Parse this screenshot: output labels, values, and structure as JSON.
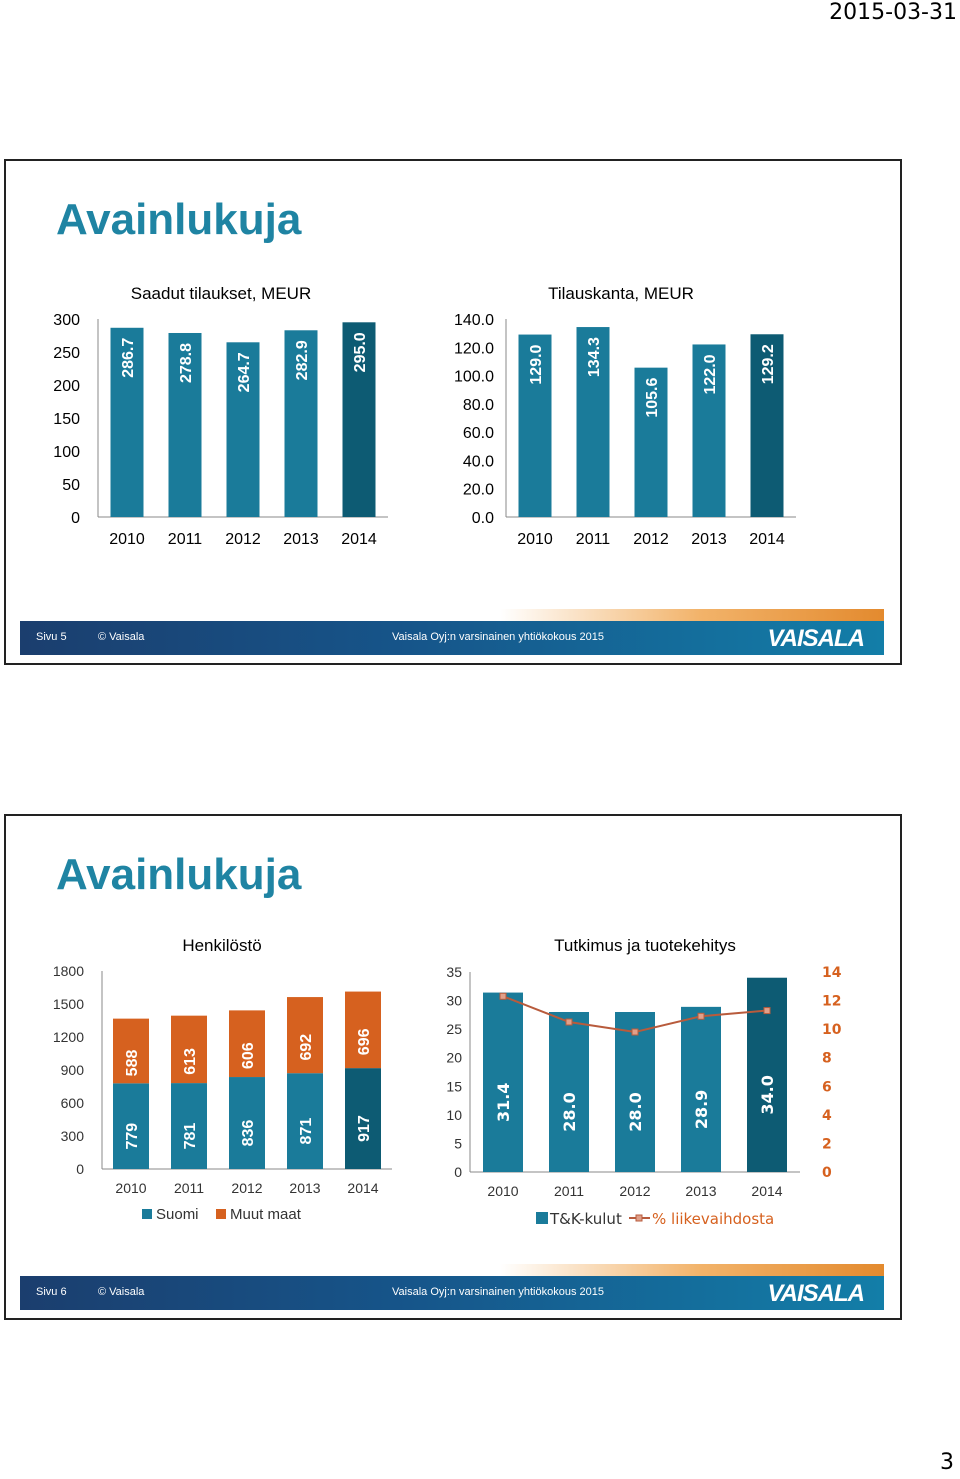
{
  "document": {
    "date": "2015-03-31",
    "page_number": "3"
  },
  "slides": [
    {
      "title": "Avainlukuja",
      "footer": {
        "page_label": "Sivu  5",
        "copyright": "© Vaisala",
        "event": "Vaisala Oyj:n varsinainen yhtiökokous 2015",
        "logo": "VAISALA"
      }
    },
    {
      "title": "Avainlukuja",
      "footer": {
        "page_label": "Sivu  6",
        "copyright": "© Vaisala",
        "event": "Vaisala Oyj:n varsinainen yhtiökokous 2015",
        "logo": "VAISALA"
      }
    }
  ],
  "colors": {
    "bar_teal": "#1a7b9a",
    "bar_dark": "#0d5b73",
    "orange": "#d6611f",
    "title": "#1f84a3",
    "line": "#b85b3c"
  },
  "chart_data": [
    {
      "type": "bar",
      "title": "Saadut tilaukset, MEUR",
      "categories": [
        "2010",
        "2011",
        "2012",
        "2013",
        "2014"
      ],
      "values": [
        286.7,
        278.8,
        264.7,
        282.9,
        295.0
      ],
      "value_labels": [
        "286.7",
        "278.8",
        "264.7",
        "282.9",
        "295.0"
      ],
      "ylim": [
        0,
        300
      ],
      "yticks": [
        "0",
        "50",
        "100",
        "150",
        "200",
        "250",
        "300"
      ]
    },
    {
      "type": "bar",
      "title": "Tilauskanta, MEUR",
      "categories": [
        "2010",
        "2011",
        "2012",
        "2013",
        "2014"
      ],
      "values": [
        129.0,
        134.3,
        105.6,
        122.0,
        129.2
      ],
      "value_labels": [
        "129.0",
        "134.3",
        "105.6",
        "122.0",
        "129.2"
      ],
      "ylim": [
        0,
        140
      ],
      "yticks": [
        "0.0",
        "20.0",
        "40.0",
        "60.0",
        "80.0",
        "100.0",
        "120.0",
        "140.0"
      ]
    },
    {
      "type": "bar",
      "stacked": true,
      "title": "Henkilöstö",
      "categories": [
        "2010",
        "2011",
        "2012",
        "2013",
        "2014"
      ],
      "series": [
        {
          "name": "Suomi",
          "values": [
            779,
            781,
            836,
            871,
            917
          ],
          "labels": [
            "779",
            "781",
            "836",
            "871",
            "917"
          ]
        },
        {
          "name": "Muut maat",
          "values": [
            588,
            613,
            606,
            692,
            696
          ],
          "labels": [
            "588",
            "613",
            "606",
            "692",
            "696"
          ]
        }
      ],
      "ylim": [
        0,
        1800
      ],
      "yticks": [
        "0",
        "300",
        "600",
        "900",
        "1200",
        "1500",
        "1800"
      ],
      "legend_position": "bottom"
    },
    {
      "type": "bar",
      "title": "Tutkimus ja tuotekehitys",
      "categories": [
        "2010",
        "2011",
        "2012",
        "2013",
        "2014"
      ],
      "series": [
        {
          "name": "T&K-kulut",
          "values": [
            31.4,
            28.0,
            28.0,
            28.9,
            34.0
          ],
          "labels": [
            "31.4",
            "28.0",
            "28.0",
            "28.9",
            "34.0"
          ],
          "axis": "left"
        },
        {
          "name": "% liikevaihdosta",
          "type": "line",
          "values": [
            12.3,
            10.5,
            9.8,
            10.9,
            11.3
          ],
          "axis": "right"
        }
      ],
      "ylim": [
        0,
        35
      ],
      "ylim_right": [
        0,
        14
      ],
      "yticks": [
        "0",
        "5",
        "10",
        "15",
        "20",
        "25",
        "30",
        "35"
      ],
      "yticks_right": [
        "0",
        "2",
        "4",
        "6",
        "8",
        "10",
        "12",
        "14"
      ],
      "legend_position": "bottom"
    }
  ]
}
